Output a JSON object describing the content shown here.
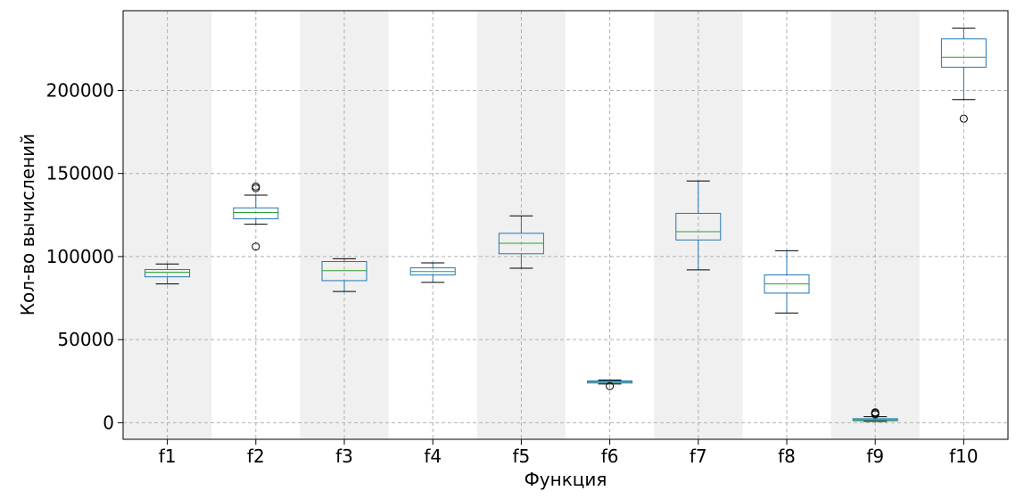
{
  "chart_data": {
    "type": "box",
    "title": "",
    "xlabel": "Функция",
    "ylabel": "Кол-во вычислений",
    "ylim": [
      -10000,
      248000
    ],
    "yticks": [
      0,
      50000,
      100000,
      150000,
      200000
    ],
    "ytick_labels": [
      "0",
      "50000",
      "100000",
      "150000",
      "200000"
    ],
    "grid": true,
    "alternating_band_color": "#f0f0f0",
    "box_color": "#1f77b4",
    "median_color": "#2ca02c",
    "whisker_color": "#1f77b4",
    "cap_color": "#000000",
    "categories": [
      "f1",
      "f2",
      "f3",
      "f4",
      "f5",
      "f6",
      "f7",
      "f8",
      "f9",
      "f10"
    ],
    "boxes": [
      {
        "name": "f1",
        "whislo": 83500,
        "q1": 87800,
        "med": 90500,
        "q3": 92200,
        "whishi": 95500,
        "fliers": []
      },
      {
        "name": "f2",
        "whislo": 119500,
        "q1": 122700,
        "med": 126500,
        "q3": 129300,
        "whishi": 137000,
        "fliers": [
          106000,
          141200,
          142200
        ]
      },
      {
        "name": "f3",
        "whislo": 79000,
        "q1": 85500,
        "med": 91500,
        "q3": 97000,
        "whishi": 98700,
        "fliers": []
      },
      {
        "name": "f4",
        "whislo": 84500,
        "q1": 88900,
        "med": 91000,
        "q3": 93200,
        "whishi": 96200,
        "fliers": []
      },
      {
        "name": "f5",
        "whislo": 93000,
        "q1": 101700,
        "med": 108000,
        "q3": 114000,
        "whishi": 124500,
        "fliers": []
      },
      {
        "name": "f6",
        "whislo": 23300,
        "q1": 23900,
        "med": 24500,
        "q3": 25100,
        "whishi": 25700,
        "fliers": [
          22000
        ]
      },
      {
        "name": "f7",
        "whislo": 92000,
        "q1": 110000,
        "med": 115000,
        "q3": 126000,
        "whishi": 145500,
        "fliers": []
      },
      {
        "name": "f8",
        "whislo": 66000,
        "q1": 78000,
        "med": 83500,
        "q3": 89000,
        "whishi": 103500,
        "fliers": []
      },
      {
        "name": "f9",
        "whislo": 800,
        "q1": 1200,
        "med": 1700,
        "q3": 2400,
        "whishi": 3600,
        "fliers": [
          5000,
          5700,
          6200
        ]
      },
      {
        "name": "f10",
        "whislo": 194500,
        "q1": 214000,
        "med": 220000,
        "q3": 231000,
        "whishi": 237500,
        "fliers": [
          183000
        ]
      }
    ]
  }
}
